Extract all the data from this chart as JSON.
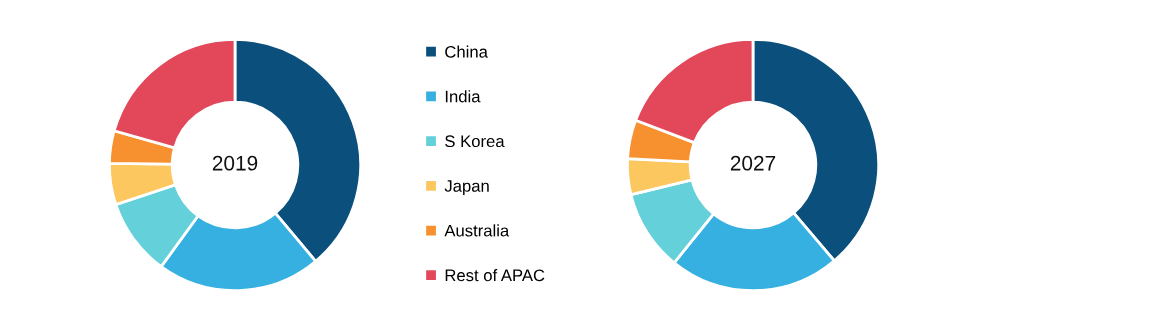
{
  "chart_data": [
    {
      "type": "donut",
      "title": "2019",
      "categories": [
        "China",
        "India",
        "S Korea",
        "Japan",
        "Australia",
        "Rest of APAC"
      ],
      "values": [
        38.9,
        21.1,
        9.9,
        5.3,
        4.2,
        20.6
      ],
      "colors": [
        "#0b4f7c",
        "#35b0e0",
        "#63d0da",
        "#fcc75f",
        "#f7912f",
        "#e2475a"
      ],
      "legend": "right"
    },
    {
      "type": "donut",
      "title": "2027",
      "categories": [
        null,
        null,
        null,
        null,
        null,
        null
      ],
      "values": [
        38.8,
        22.0,
        10.4,
        4.6,
        5.0,
        19.2
      ],
      "colors": [
        "#0b4f7c",
        "#35b0e0",
        "#63d0da",
        "#fcc75f",
        "#f7912f",
        "#e2475a"
      ]
    }
  ]
}
